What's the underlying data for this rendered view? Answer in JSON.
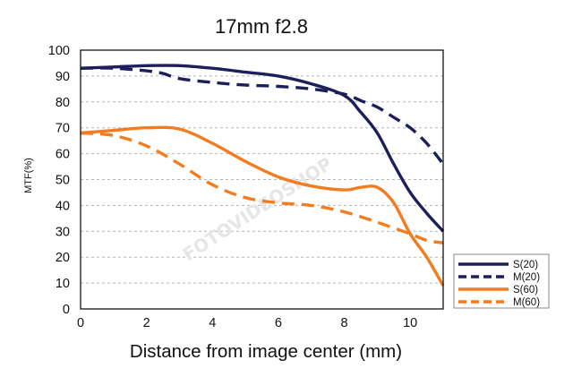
{
  "chart_data": {
    "type": "line",
    "title": "17mm f2.8",
    "xlabel": "Distance from image center (mm)",
    "ylabel": "MTF(%)",
    "xlim": [
      0,
      11
    ],
    "ylim": [
      0,
      100
    ],
    "x_ticks": [
      0,
      2,
      4,
      6,
      8,
      10
    ],
    "y_ticks": [
      0,
      10,
      20,
      30,
      40,
      50,
      60,
      70,
      80,
      90,
      100
    ],
    "grid": "horizontal dashed",
    "legend_position": "bottom-right outside",
    "series": [
      {
        "name": "S(20)",
        "color": "#1c1f5c",
        "style": "solid",
        "points": [
          [
            0,
            93
          ],
          [
            1,
            93.5
          ],
          [
            2,
            94
          ],
          [
            3,
            94
          ],
          [
            4,
            93
          ],
          [
            5,
            91.5
          ],
          [
            6,
            90
          ],
          [
            7,
            87
          ],
          [
            8,
            82.5
          ],
          [
            8.5,
            76
          ],
          [
            9,
            68
          ],
          [
            9.5,
            56
          ],
          [
            10,
            45
          ],
          [
            10.5,
            37
          ],
          [
            11,
            30
          ]
        ]
      },
      {
        "name": "M(20)",
        "color": "#1c1f5c",
        "style": "dashed",
        "points": [
          [
            0,
            93
          ],
          [
            1,
            93
          ],
          [
            2,
            92
          ],
          [
            2.5,
            91
          ],
          [
            3,
            89
          ],
          [
            4,
            87.5
          ],
          [
            5,
            86.5
          ],
          [
            6,
            86
          ],
          [
            7,
            85
          ],
          [
            8,
            83
          ],
          [
            8.5,
            80.5
          ],
          [
            9,
            78
          ],
          [
            9.5,
            74
          ],
          [
            10,
            70
          ],
          [
            10.5,
            64
          ],
          [
            11,
            56
          ]
        ]
      },
      {
        "name": "S(60)",
        "color": "#f47c20",
        "style": "solid",
        "points": [
          [
            0,
            68
          ],
          [
            1,
            69
          ],
          [
            2,
            70
          ],
          [
            3,
            69.5
          ],
          [
            4,
            64
          ],
          [
            5,
            57
          ],
          [
            6,
            51
          ],
          [
            7,
            47.5
          ],
          [
            8,
            46
          ],
          [
            8.5,
            47
          ],
          [
            9,
            47
          ],
          [
            9.5,
            41
          ],
          [
            10,
            29
          ],
          [
            10.5,
            20
          ],
          [
            11,
            9
          ]
        ]
      },
      {
        "name": "M(60)",
        "color": "#f47c20",
        "style": "dashed",
        "points": [
          [
            0,
            68
          ],
          [
            1,
            67
          ],
          [
            2,
            63
          ],
          [
            3,
            56
          ],
          [
            4,
            48
          ],
          [
            5,
            43
          ],
          [
            6,
            41
          ],
          [
            7,
            40
          ],
          [
            8,
            37.5
          ],
          [
            9,
            33.5
          ],
          [
            10,
            29
          ],
          [
            10.5,
            26.5
          ],
          [
            11,
            25.5
          ]
        ]
      }
    ]
  },
  "colors": {
    "dark_blue": "#1c1f5c",
    "orange": "#f47c20"
  },
  "watermark": {
    "text": "FOTOVIDEOSHOP"
  }
}
